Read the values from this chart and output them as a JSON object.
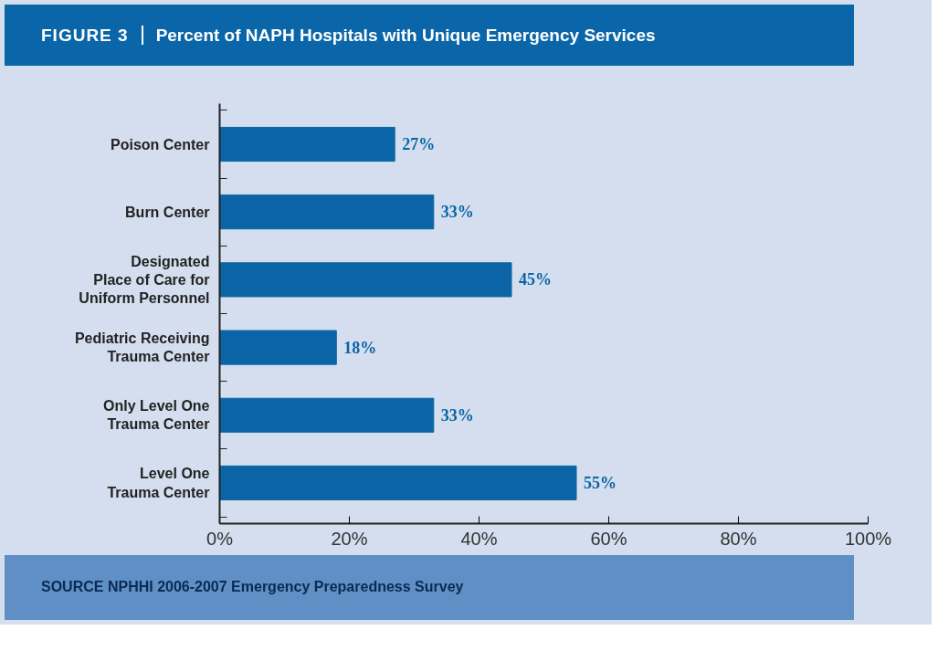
{
  "chart_data": {
    "type": "bar",
    "orientation": "horizontal",
    "subtitle": "FIGURE 3",
    "title": "Percent of NAPH Hospitals with Unique Emergency Services",
    "categories": [
      "Poison Center",
      "Burn Center",
      "Designated\nPlace of Care for\nUniform Personnel",
      "Pediatric Receiving\nTrauma Center",
      "Only Level One\nTrauma Center",
      "Level One\nTrauma Center"
    ],
    "values": [
      27,
      33,
      45,
      18,
      33,
      55
    ],
    "value_labels": [
      "27%",
      "33%",
      "45%",
      "18%",
      "33%",
      "55%"
    ],
    "color": "#0a64a6",
    "xlim": [
      0,
      100
    ],
    "xticks": [
      {
        "value": 0,
        "label": "0%"
      },
      {
        "value": 20,
        "label": "20%"
      },
      {
        "value": 40,
        "label": "40%"
      },
      {
        "value": 60,
        "label": "60%"
      },
      {
        "value": 80,
        "label": "80%"
      },
      {
        "value": 100,
        "label": "100%"
      }
    ],
    "grid": false,
    "annotations": [
      "SOURCE NPHHI 2006-2007 Emergency Preparedness Survey"
    ]
  }
}
